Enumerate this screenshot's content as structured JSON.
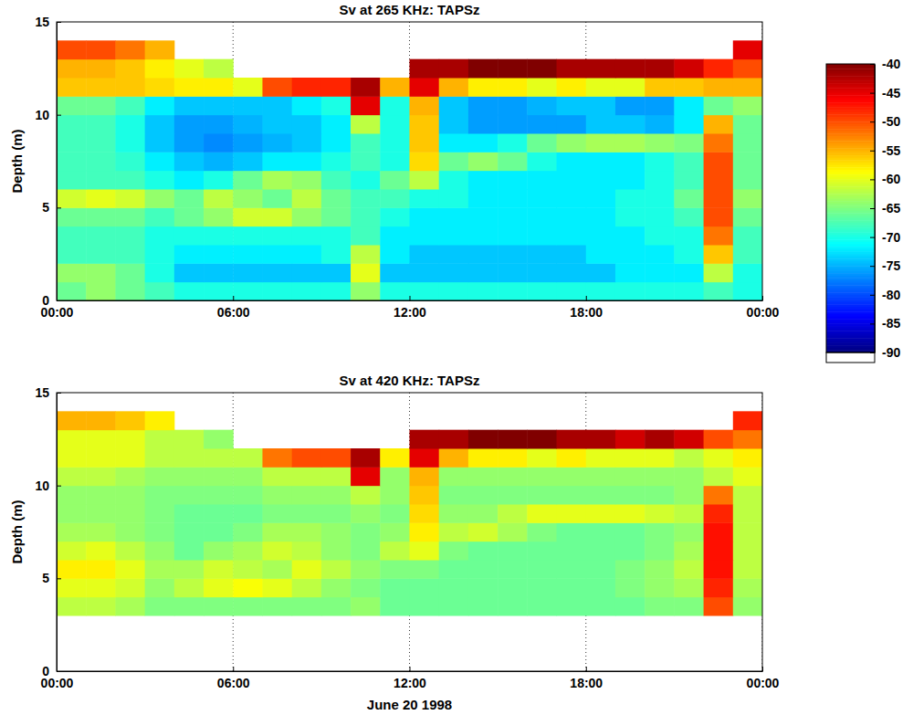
{
  "chart_data": [
    {
      "type": "heatmap",
      "title": "Sv at 265 KHz: TAPSz",
      "ylabel": "Depth (m)",
      "color": "jet",
      "grid": "x",
      "xlim": [
        0,
        24
      ],
      "xticks": [
        {
          "value": 0,
          "label": "00:00"
        },
        {
          "value": 6,
          "label": "06:00"
        },
        {
          "value": 12,
          "label": "12:00"
        },
        {
          "value": 18,
          "label": "18:00"
        },
        {
          "value": 24,
          "label": "00:00"
        }
      ],
      "ylim": [
        0,
        15
      ],
      "yticks": [
        0,
        5,
        10,
        15
      ],
      "x_bins": [
        0,
        1,
        2,
        3,
        4,
        5,
        6,
        7,
        8,
        9,
        10,
        11,
        12,
        13,
        14,
        15,
        16,
        17,
        18,
        19,
        20,
        21,
        22,
        23,
        24
      ],
      "y_bins": [
        0,
        1,
        2,
        3,
        4,
        5,
        6,
        7,
        8,
        9,
        10,
        11,
        12,
        13,
        14
      ],
      "clim": [
        -90,
        -40
      ],
      "cticks": [
        -40,
        -45,
        -50,
        -55,
        -60,
        -65,
        -70,
        -75,
        -80,
        -85,
        -90
      ],
      "cells": [
        [
          -66,
          -64,
          -66,
          -68,
          -70,
          -70,
          -70,
          -70,
          -70,
          -70,
          -64,
          -70,
          -70,
          -70,
          -70,
          -70,
          -70,
          -70,
          -70,
          -70,
          -70,
          -70,
          -68,
          -70
        ],
        [
          -64,
          -64,
          -66,
          -70,
          -74,
          -74,
          -74,
          -74,
          -74,
          -74,
          -60,
          -74,
          -74,
          -74,
          -74,
          -74,
          -74,
          -74,
          -74,
          -72,
          -72,
          -72,
          -62,
          -70
        ],
        [
          -68,
          -68,
          -68,
          -70,
          -72,
          -72,
          -72,
          -72,
          -72,
          -70,
          -62,
          -72,
          -74,
          -74,
          -74,
          -74,
          -74,
          -74,
          -72,
          -72,
          -72,
          -70,
          -56,
          -68
        ],
        [
          -68,
          -68,
          -68,
          -70,
          -70,
          -70,
          -70,
          -70,
          -70,
          -70,
          -68,
          -72,
          -72,
          -72,
          -72,
          -72,
          -72,
          -72,
          -72,
          -72,
          -70,
          -70,
          -52,
          -68
        ],
        [
          -66,
          -66,
          -66,
          -68,
          -66,
          -64,
          -61,
          -61,
          -64,
          -66,
          -68,
          -70,
          -72,
          -72,
          -72,
          -72,
          -72,
          -72,
          -72,
          -70,
          -70,
          -68,
          -50,
          -66
        ],
        [
          -61,
          -60,
          -61,
          -64,
          -66,
          -62,
          -64,
          -66,
          -62,
          -66,
          -68,
          -68,
          -70,
          -70,
          -72,
          -72,
          -72,
          -72,
          -72,
          -70,
          -70,
          -66,
          -50,
          -64
        ],
        [
          -68,
          -68,
          -68,
          -70,
          -72,
          -70,
          -66,
          -63,
          -64,
          -68,
          -70,
          -66,
          -62,
          -70,
          -72,
          -72,
          -72,
          -72,
          -72,
          -72,
          -70,
          -68,
          -50,
          -66
        ],
        [
          -68,
          -68,
          -69,
          -72,
          -74,
          -75,
          -74,
          -72,
          -72,
          -70,
          -68,
          -70,
          -57,
          -66,
          -64,
          -66,
          -70,
          -72,
          -72,
          -72,
          -70,
          -68,
          -50,
          -66
        ],
        [
          -68,
          -68,
          -70,
          -74,
          -76,
          -77,
          -76,
          -75,
          -74,
          -72,
          -68,
          -70,
          -56,
          -72,
          -72,
          -70,
          -66,
          -64,
          -63,
          -63,
          -64,
          -65,
          -52,
          -66
        ],
        [
          -68,
          -68,
          -70,
          -74,
          -76,
          -76,
          -75,
          -74,
          -74,
          -72,
          -62,
          -70,
          -56,
          -74,
          -76,
          -76,
          -76,
          -76,
          -74,
          -74,
          -75,
          -72,
          -55,
          -66
        ],
        [
          -66,
          -66,
          -68,
          -72,
          -74,
          -74,
          -74,
          -74,
          -72,
          -70,
          -45,
          -70,
          -55,
          -74,
          -76,
          -76,
          -75,
          -74,
          -74,
          -76,
          -76,
          -72,
          -66,
          -64
        ],
        [
          -56,
          -56,
          -56,
          -57,
          -58,
          -58,
          -60,
          -50,
          -48,
          -48,
          -42,
          -55,
          -45,
          -55,
          -58,
          -58,
          -60,
          -58,
          -60,
          -60,
          -56,
          -56,
          -55,
          -55
        ],
        [
          -55,
          -55,
          -56,
          -58,
          -60,
          -62,
          null,
          null,
          null,
          null,
          null,
          null,
          -42,
          -42,
          -40,
          -40,
          -40,
          -42,
          -42,
          -42,
          -42,
          -44,
          -48,
          -50
        ],
        [
          -50,
          -50,
          -52,
          -55,
          null,
          null,
          null,
          null,
          null,
          null,
          null,
          null,
          null,
          null,
          null,
          null,
          null,
          null,
          null,
          null,
          null,
          null,
          null,
          -45
        ]
      ]
    },
    {
      "type": "heatmap",
      "title": "Sv at 420 KHz: TAPSz",
      "ylabel": "Depth (m)",
      "xlabel": "June 20 1998",
      "color": "jet",
      "grid": "x",
      "xlim": [
        0,
        24
      ],
      "xticks": [
        {
          "value": 0,
          "label": "00:00"
        },
        {
          "value": 6,
          "label": "06:00"
        },
        {
          "value": 12,
          "label": "12:00"
        },
        {
          "value": 18,
          "label": "18:00"
        },
        {
          "value": 24,
          "label": "00:00"
        }
      ],
      "ylim": [
        0,
        15
      ],
      "yticks": [
        0,
        5,
        10,
        15
      ],
      "x_bins": [
        0,
        1,
        2,
        3,
        4,
        5,
        6,
        7,
        8,
        9,
        10,
        11,
        12,
        13,
        14,
        15,
        16,
        17,
        18,
        19,
        20,
        21,
        22,
        23,
        24
      ],
      "y_bins": [
        0,
        1,
        2,
        3,
        4,
        5,
        6,
        7,
        8,
        9,
        10,
        11,
        12,
        13,
        14
      ],
      "clim": [
        -90,
        -40
      ],
      "cells": [
        [
          null,
          null,
          null,
          null,
          null,
          null,
          null,
          null,
          null,
          null,
          null,
          null,
          null,
          null,
          null,
          null,
          null,
          null,
          null,
          null,
          null,
          null,
          null,
          null
        ],
        [
          null,
          null,
          null,
          null,
          null,
          null,
          null,
          null,
          null,
          null,
          null,
          null,
          null,
          null,
          null,
          null,
          null,
          null,
          null,
          null,
          null,
          null,
          null,
          null
        ],
        [
          null,
          null,
          null,
          null,
          null,
          null,
          null,
          null,
          null,
          null,
          null,
          null,
          null,
          null,
          null,
          null,
          null,
          null,
          null,
          null,
          null,
          null,
          null,
          null
        ],
        [
          -62,
          -62,
          -63,
          -65,
          -65,
          -65,
          -65,
          -65,
          -65,
          -65,
          -64,
          -66,
          -66,
          -66,
          -66,
          -66,
          -66,
          -66,
          -66,
          -66,
          -65,
          -65,
          -50,
          -64
        ],
        [
          -60,
          -60,
          -61,
          -64,
          -62,
          -60,
          -59,
          -60,
          -62,
          -64,
          -65,
          -66,
          -66,
          -66,
          -66,
          -66,
          -66,
          -66,
          -66,
          -65,
          -64,
          -63,
          -48,
          -63
        ],
        [
          -58,
          -58,
          -60,
          -63,
          -63,
          -61,
          -62,
          -63,
          -60,
          -62,
          -64,
          -65,
          -65,
          -66,
          -66,
          -66,
          -66,
          -66,
          -66,
          -65,
          -64,
          -62,
          -47,
          -62
        ],
        [
          -61,
          -60,
          -62,
          -64,
          -66,
          -64,
          -63,
          -61,
          -62,
          -64,
          -65,
          -62,
          -60,
          -65,
          -66,
          -66,
          -66,
          -66,
          -66,
          -66,
          -65,
          -63,
          -47,
          -62
        ],
        [
          -63,
          -63,
          -64,
          -65,
          -66,
          -66,
          -65,
          -63,
          -63,
          -64,
          -65,
          -64,
          -58,
          -62,
          -61,
          -63,
          -65,
          -66,
          -66,
          -66,
          -65,
          -64,
          -47,
          -62
        ],
        [
          -64,
          -64,
          -64,
          -65,
          -66,
          -66,
          -66,
          -65,
          -65,
          -65,
          -64,
          -65,
          -57,
          -64,
          -64,
          -62,
          -60,
          -60,
          -60,
          -60,
          -61,
          -62,
          -48,
          -62
        ],
        [
          -64,
          -64,
          -64,
          -65,
          -65,
          -65,
          -65,
          -64,
          -64,
          -64,
          -62,
          -64,
          -56,
          -65,
          -65,
          -65,
          -65,
          -65,
          -65,
          -65,
          -65,
          -64,
          -52,
          -62
        ],
        [
          -62,
          -62,
          -63,
          -64,
          -64,
          -64,
          -64,
          -62,
          -62,
          -62,
          -45,
          -64,
          -55,
          -64,
          -64,
          -64,
          -64,
          -64,
          -64,
          -64,
          -64,
          -64,
          -62,
          -60
        ],
        [
          -60,
          -60,
          -60,
          -62,
          -62,
          -62,
          -62,
          -52,
          -50,
          -50,
          -42,
          -58,
          -45,
          -55,
          -58,
          -58,
          -60,
          -58,
          -60,
          -60,
          -60,
          -62,
          -60,
          -58
        ],
        [
          -60,
          -60,
          -60,
          -62,
          -62,
          -64,
          null,
          null,
          null,
          null,
          null,
          null,
          -42,
          -42,
          -40,
          -40,
          -40,
          -42,
          -42,
          -44,
          -42,
          -44,
          -50,
          -52
        ],
        [
          -55,
          -55,
          -56,
          -58,
          null,
          null,
          null,
          null,
          null,
          null,
          null,
          null,
          null,
          null,
          null,
          null,
          null,
          null,
          null,
          null,
          null,
          null,
          null,
          -48
        ]
      ]
    }
  ]
}
